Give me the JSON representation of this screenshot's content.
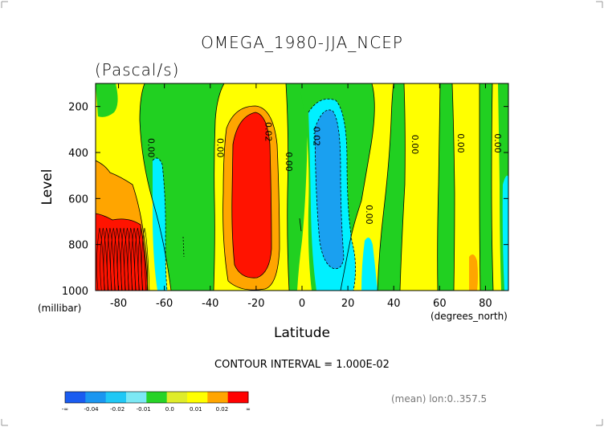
{
  "chart_data": {
    "type": "contour",
    "title": "OMEGA_1980-JJA_NCEP",
    "subtitle": "(Pascal/s)",
    "xlabel": "Latitude",
    "x_units": "(degrees_north)",
    "ylabel": "Level",
    "y_units": "(millibar)",
    "xlim": [
      -90,
      90
    ],
    "ylim": [
      1000,
      100
    ],
    "x_ticks": [
      -80,
      -60,
      -40,
      -20,
      0,
      20,
      40,
      60,
      80
    ],
    "y_ticks": [
      200,
      400,
      600,
      800,
      1000
    ],
    "contour_interval_text": "CONTOUR INTERVAL = 1.000E-02",
    "footnote": "(mean) lon:0..357.5",
    "contour_labels": [
      {
        "text": "0.00",
        "lat": -67,
        "lev": 380
      },
      {
        "text": "0.00",
        "lat": -37,
        "lev": 380
      },
      {
        "text": "0.02",
        "lat": -16,
        "lev": 310
      },
      {
        "text": "0.00",
        "lat": -7,
        "lev": 440
      },
      {
        "text": "0.02",
        "lat": 5,
        "lev": 330
      },
      {
        "text": "0.00",
        "lat": 28,
        "lev": 670
      },
      {
        "text": "0.00",
        "lat": 48,
        "lev": 365
      },
      {
        "text": "0.00",
        "lat": 68,
        "lev": 360
      },
      {
        "text": "0.00",
        "lat": 84,
        "lev": 360
      }
    ],
    "colorbar": {
      "colors": [
        "#1a5cf0",
        "#1b96f0",
        "#20c8f5",
        "#7ce8f4",
        "#27d327",
        "#dfec2a",
        "#ffff00",
        "#ffa500",
        "#ff0000"
      ],
      "labels": [
        "-∞",
        "-0.04",
        "-0.02",
        "-0.01",
        "0.0",
        "0.01",
        "0.02",
        "∞"
      ]
    },
    "palette": {
      "green": "#21d021",
      "yellow": "#ffff00",
      "orange": "#ffa500",
      "red": "#ff1300",
      "cyan": "#00f0ff",
      "blue": "#1aa0f0"
    }
  }
}
